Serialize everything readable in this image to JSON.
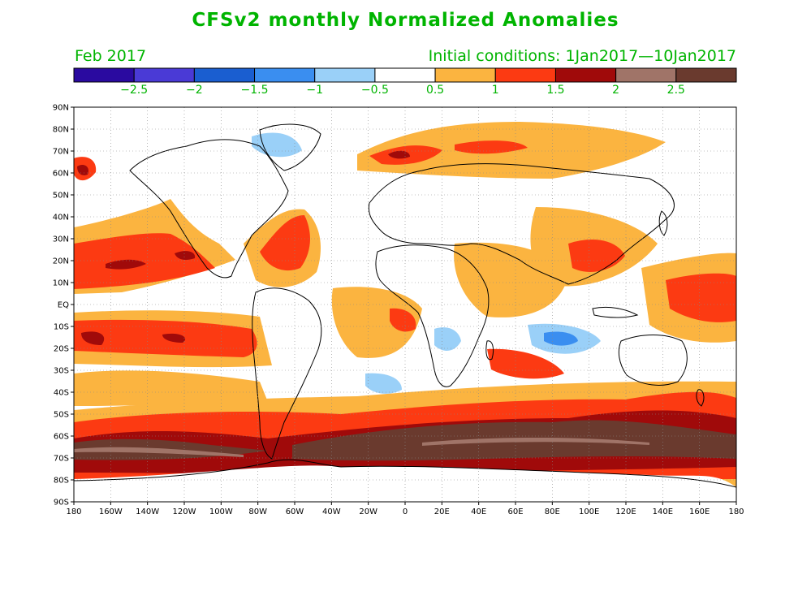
{
  "title": "CFSv2 monthly Normalized Anomalies",
  "month_label": "Feb 2017",
  "init_label": "Initial conditions: 1Jan2017—10Jan2017",
  "colorbar": {
    "colors": [
      "#2a0aa0",
      "#4a3ad6",
      "#1a5ed0",
      "#3a8ef0",
      "#9ad0f8",
      "#ffffff",
      "#fbb440",
      "#fc3a12",
      "#a00a0a",
      "#a07468",
      "#6a3a2e"
    ],
    "labels": [
      "-2.5",
      "-2",
      "-1.5",
      "-1",
      "-0.5",
      "0.5",
      "1",
      "1.5",
      "2",
      "2.5"
    ]
  },
  "map": {
    "lon_labels": [
      "180",
      "160W",
      "140W",
      "120W",
      "100W",
      "80W",
      "60W",
      "40W",
      "20W",
      "0",
      "20E",
      "40E",
      "60E",
      "80E",
      "100E",
      "120E",
      "140E",
      "160E",
      "180"
    ],
    "lat_labels": [
      "90N",
      "80N",
      "70N",
      "60N",
      "50N",
      "40N",
      "30N",
      "20N",
      "10N",
      "EQ",
      "10S",
      "20S",
      "30S",
      "40S",
      "50S",
      "60S",
      "70S",
      "80S",
      "90S"
    ]
  }
}
